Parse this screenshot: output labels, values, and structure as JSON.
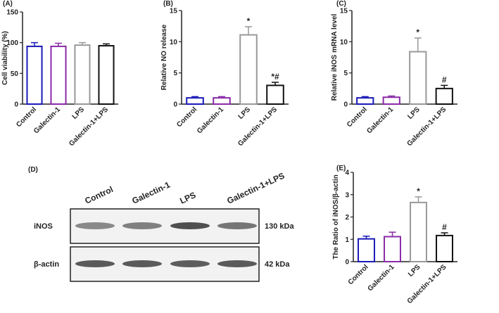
{
  "chart_data": [
    {
      "type": "bar",
      "panel": "(A)",
      "ylabel": "Cell viability (%)",
      "categories": [
        "Control",
        "Galectin-1",
        "LPS",
        "Galectin-1+LPS"
      ],
      "values": [
        94,
        94,
        96,
        95
      ],
      "errors": [
        6,
        5,
        4,
        3
      ],
      "colors": [
        "#1a1ab8",
        "#8a2aa8",
        "#999999",
        "#111111"
      ],
      "ylim": [
        0,
        150
      ],
      "yticks": [
        0,
        50,
        100,
        150
      ]
    },
    {
      "type": "bar",
      "panel": "(B)",
      "ylabel": "Relative NO release",
      "categories": [
        "Control",
        "Galectin-1",
        "LPS",
        "Galectin-1+LPS"
      ],
      "values": [
        1.0,
        1.0,
        11.1,
        3.0
      ],
      "errors": [
        0.2,
        0.2,
        1.3,
        0.5
      ],
      "annotations": [
        null,
        null,
        "*",
        "*#"
      ],
      "colors": [
        "#1a1ab8",
        "#8a2aa8",
        "#999999",
        "#111111"
      ],
      "ylim": [
        0,
        15
      ],
      "yticks": [
        0,
        5,
        10,
        15
      ]
    },
    {
      "type": "bar",
      "panel": "(C)",
      "ylabel": "Relative iNOS mRNA level",
      "categories": [
        "Control",
        "Galectin-1",
        "LPS",
        "Galectin-1+LPS"
      ],
      "values": [
        1.0,
        1.1,
        8.4,
        2.5
      ],
      "errors": [
        0.2,
        0.2,
        2.2,
        0.5
      ],
      "annotations": [
        null,
        null,
        "*",
        "#"
      ],
      "colors": [
        "#1a1ab8",
        "#8a2aa8",
        "#999999",
        "#111111"
      ],
      "ylim": [
        0,
        15
      ],
      "yticks": [
        0,
        5,
        10,
        15
      ]
    },
    {
      "type": "bar",
      "panel": "(E)",
      "ylabel": "The Ratio of iNOS/β-actin",
      "categories": [
        "Control",
        "Galectin-1",
        "LPS",
        "Galectin-1+LPS"
      ],
      "values": [
        1.02,
        1.12,
        2.65,
        1.17
      ],
      "errors": [
        0.12,
        0.2,
        0.25,
        0.12
      ],
      "annotations": [
        null,
        null,
        "*",
        "#"
      ],
      "colors": [
        "#1a1ab8",
        "#8a2aa8",
        "#999999",
        "#111111"
      ],
      "ylim": [
        0,
        4
      ],
      "yticks": [
        0,
        1,
        2,
        3,
        4
      ]
    }
  ],
  "blot": {
    "panel": "(D)",
    "lanes": [
      "Control",
      "Galectin-1",
      "LPS",
      "Galectin-1+LPS"
    ],
    "rows": [
      {
        "name": "iNOS",
        "size": "130 kDa"
      },
      {
        "name": "β-actin",
        "size": "42 kDa"
      }
    ]
  }
}
